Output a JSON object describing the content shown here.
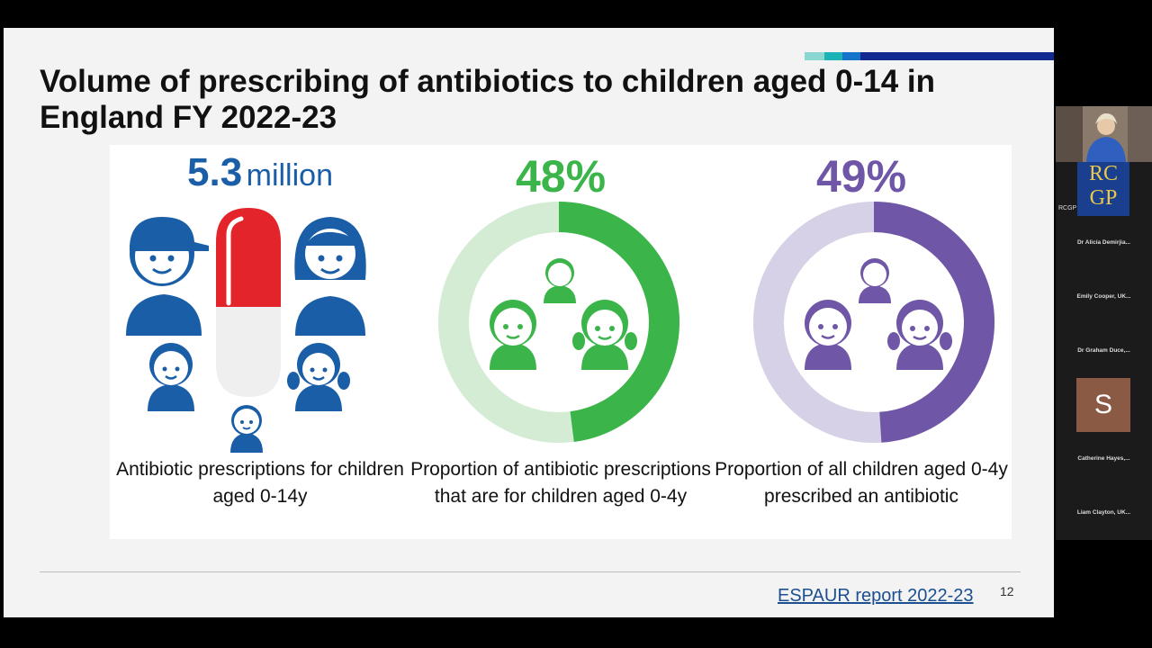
{
  "slide": {
    "title": "Volume of prescribing of antibiotics to children aged 0-14 in England FY 2022-23",
    "stats": [
      {
        "value": "5.3",
        "unit": "million",
        "caption": "Antibiotic prescriptions for children aged 0-14y",
        "color": "#1a5ea8"
      },
      {
        "value": "48%",
        "caption": "Proportion of antibiotic prescriptions that are for children aged 0-4y",
        "fraction": 0.48,
        "color": "#3bb54a",
        "track_color": "#d3ecd3"
      },
      {
        "value": "49%",
        "caption": "Proportion of all children aged 0-4y prescribed an antibiotic",
        "fraction": 0.49,
        "color": "#6f56a6",
        "track_color": "#d6d1e6"
      }
    ],
    "reference": "ESPAUR report 2022-23",
    "page_number": "12"
  },
  "participants": {
    "rcgp_label": "RCGP",
    "logo_text_top": "RC",
    "logo_text_bottom": "GP",
    "names": [
      "Dr Alicia Demirjia...",
      "Emily Cooper, UK...",
      "Dr Graham Duce,...",
      "Catherine Hayes,...",
      "Liam Clayton, UK..."
    ],
    "avatar_letter": "S"
  },
  "colors": {
    "red_capsule": "#e3242b",
    "accent_navy": "#12298f",
    "accent_teal": "#7fd3cf"
  }
}
